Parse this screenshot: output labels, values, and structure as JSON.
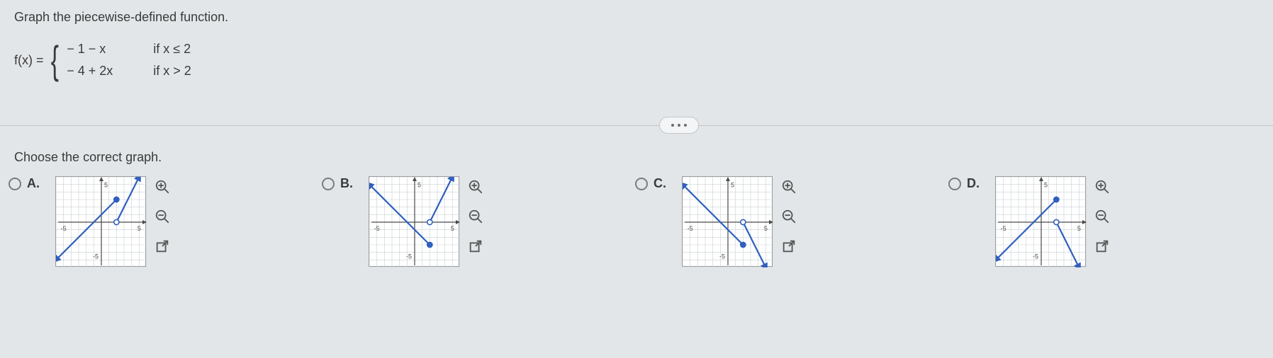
{
  "prompt": "Graph the piecewise-defined function.",
  "equation": {
    "label": "f(x) =",
    "pieces": [
      {
        "expr": "− 1 − x",
        "cond": "if x ≤ 2"
      },
      {
        "expr": "− 4 + 2x",
        "cond": "if x > 2"
      }
    ]
  },
  "choose_text": "Choose the correct graph.",
  "options": [
    {
      "label": "A."
    },
    {
      "label": "B."
    },
    {
      "label": "C."
    },
    {
      "label": "D."
    }
  ],
  "graph": {
    "axis_label_pos": "5",
    "axis_label_neg": "-5",
    "xlim": [
      -6,
      6
    ],
    "ylim": [
      -6,
      6
    ],
    "grid_step": 1,
    "background_color": "#ffffff",
    "grid_color": "#c9d0d3",
    "axis_color": "#4a4a4a",
    "line_color": "#2f5fbf",
    "line_width": 2.2,
    "point_fill_closed": "#2f5fbf",
    "point_fill_open": "#ffffff",
    "point_stroke": "#2f5fbf",
    "point_radius": 3.6
  },
  "charts": {
    "A": {
      "type": "piecewise-line",
      "segments": [
        {
          "from": [
            -6,
            -5
          ],
          "to": [
            2,
            3
          ],
          "start_arrow": true
        },
        {
          "from": [
            2,
            0
          ],
          "to": [
            5,
            6
          ],
          "end_arrow": true
        }
      ],
      "points": [
        {
          "at": [
            2,
            3
          ],
          "style": "closed"
        },
        {
          "at": [
            2,
            0
          ],
          "style": "open"
        }
      ]
    },
    "B": {
      "type": "piecewise-line",
      "segments": [
        {
          "from": [
            -6,
            5
          ],
          "to": [
            2,
            -3
          ],
          "start_arrow": true
        },
        {
          "from": [
            2,
            0
          ],
          "to": [
            5,
            6
          ],
          "end_arrow": true
        }
      ],
      "points": [
        {
          "at": [
            2,
            -3
          ],
          "style": "closed"
        },
        {
          "at": [
            2,
            0
          ],
          "style": "open"
        }
      ]
    },
    "C": {
      "type": "piecewise-line",
      "segments": [
        {
          "from": [
            -6,
            5
          ],
          "to": [
            2,
            -3
          ],
          "start_arrow": true
        },
        {
          "from": [
            2,
            0
          ],
          "to": [
            5,
            -6
          ],
          "end_arrow": true
        }
      ],
      "points": [
        {
          "at": [
            2,
            -3
          ],
          "style": "closed"
        },
        {
          "at": [
            2,
            0
          ],
          "style": "open"
        }
      ]
    },
    "D": {
      "type": "piecewise-line",
      "segments": [
        {
          "from": [
            -6,
            -5
          ],
          "to": [
            2,
            3
          ],
          "start_arrow": true
        },
        {
          "from": [
            2,
            0
          ],
          "to": [
            5,
            -6
          ],
          "end_arrow": true
        }
      ],
      "points": [
        {
          "at": [
            2,
            3
          ],
          "style": "closed"
        },
        {
          "at": [
            2,
            0
          ],
          "style": "open"
        }
      ]
    }
  },
  "tool_icons": {
    "zoom_in": "zoom-in-icon",
    "zoom_out": "zoom-out-icon",
    "popout": "popout-icon"
  }
}
